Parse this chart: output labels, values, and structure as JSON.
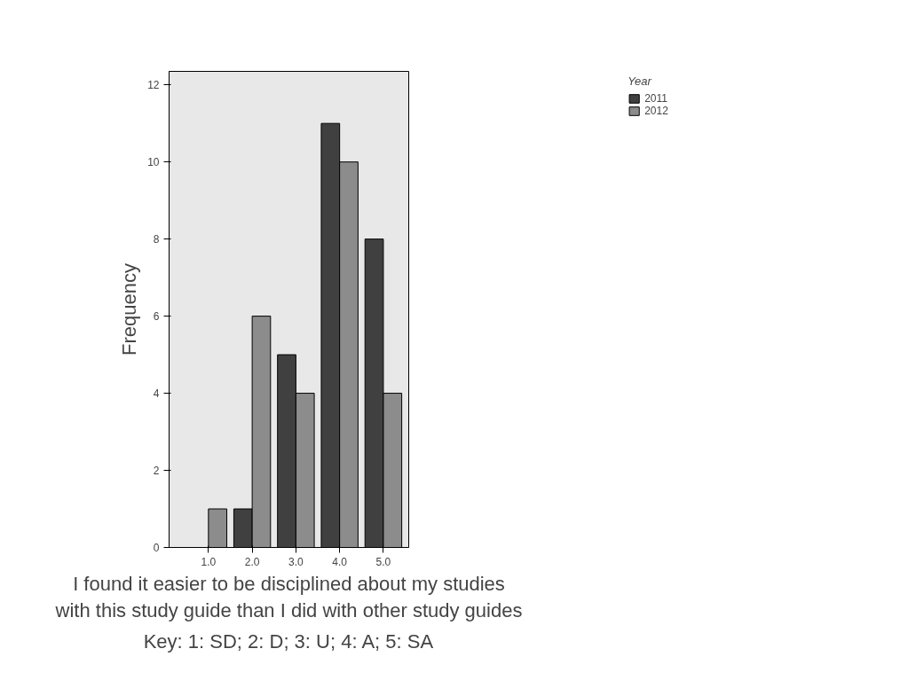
{
  "chart_data": {
    "type": "bar",
    "categories": [
      "1.0",
      "2.0",
      "3.0",
      "4.0",
      "5.0"
    ],
    "series": [
      {
        "name": "2011",
        "color": "#404040",
        "values": [
          null,
          1,
          5,
          11,
          8
        ]
      },
      {
        "name": "2012",
        "color": "#8c8c8c",
        "values": [
          1,
          6,
          4,
          10,
          4
        ]
      }
    ],
    "ylim": [
      0,
      12.35
    ],
    "yticks": [
      0,
      2,
      4,
      6,
      8,
      10,
      12
    ],
    "ylabel": "Frequency",
    "xlabel": "I found it easier to be disciplined about my studies\nwith this study guide than I did with other study guides",
    "legend_title": "Year",
    "legend": "top right",
    "grid": false,
    "annotations": [
      "Key: 1: SD; 2: D; 3: U; 4: A; 5: SA"
    ]
  }
}
